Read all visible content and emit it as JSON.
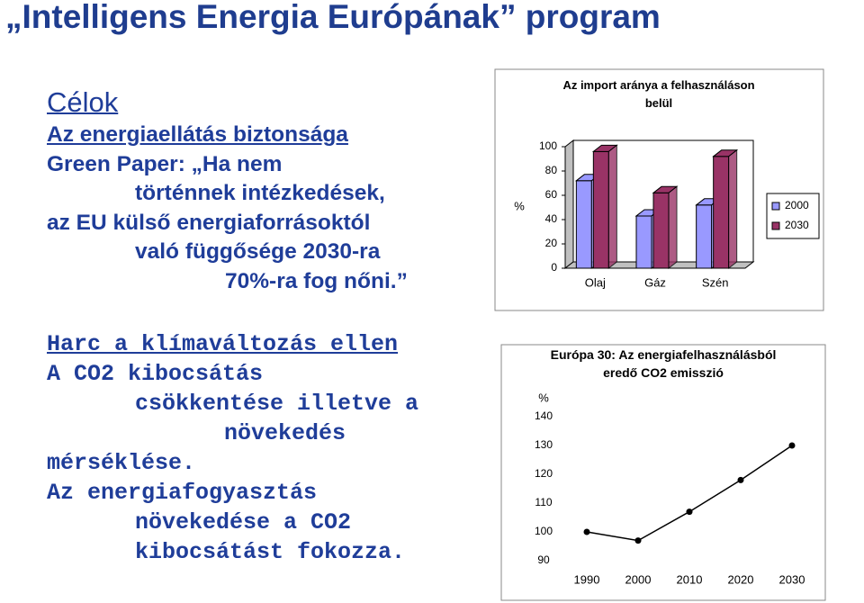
{
  "header": {
    "title": "„Intelligens Energia Európának” program"
  },
  "goals": {
    "heading": "Célok",
    "lines": [
      "Az energiaellátás biztonsága",
      "Green Paper: „Ha nem",
      "történnek intézkedések,",
      "az EU külső energiaforrásoktól",
      "való függősége 2030-ra",
      "70%-ra fog nőni.”"
    ]
  },
  "climate": {
    "lines": [
      "Harc a klímaváltozás ellen",
      "A CO2 kibocsátás",
      "csökkentése illetve a",
      "növekedés",
      "mérséklése.",
      "Az energiafogyasztás",
      "növekedése a CO2",
      "kibocsátást fokozza."
    ]
  },
  "chart_data": [
    {
      "type": "bar3d",
      "title": "Az import aránya a felhasználáson belül",
      "ylabel": "%",
      "categories": [
        "Olaj",
        "Gáz",
        "Szén"
      ],
      "series": [
        {
          "name": "2000",
          "color": "#9999ff",
          "values": [
            72,
            43,
            52
          ]
        },
        {
          "name": "2030",
          "color": "#993366",
          "values": [
            96,
            62,
            92
          ]
        }
      ],
      "ylim": [
        0,
        100
      ],
      "yticks": [
        0,
        20,
        40,
        60,
        80,
        100
      ],
      "legend": "right"
    },
    {
      "type": "line",
      "title": "Európa 30: Az energiafelhasználásból eredő CO2 emisszió",
      "ylabel": "%",
      "categories": [
        "1990",
        "2000",
        "2010",
        "2020",
        "2030"
      ],
      "values": [
        100,
        97,
        107,
        118,
        130
      ],
      "color": "#000000",
      "ylim": [
        90,
        140
      ],
      "yticks": [
        90,
        100,
        110,
        120,
        130,
        140
      ]
    }
  ]
}
